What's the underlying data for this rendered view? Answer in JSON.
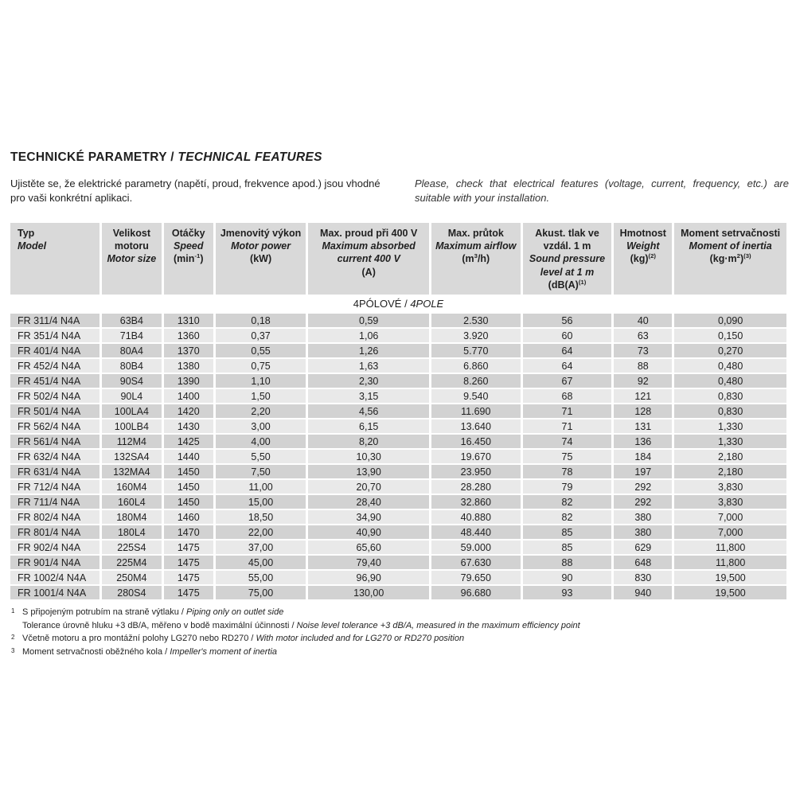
{
  "header": {
    "title_cz": "TECHNICKÉ PARAMETRY / ",
    "title_en": "TECHNICAL FEATURES",
    "intro_cz": "Ujistěte se, že elektrické parametry (napětí, proud, frekvence apod.) jsou vhodné pro vaši konkrétní aplikaci.",
    "intro_en": "Please, check that electrical features (voltage, current, frequency, etc.) are suitable with your installation."
  },
  "table": {
    "section_label": {
      "cz": "4PÓLOVÉ / ",
      "en": "4POLE"
    },
    "columns": [
      {
        "cz": "Typ",
        "en": "Model",
        "unit": []
      },
      {
        "cz": "Velikost motoru",
        "en": "Motor size",
        "unit": []
      },
      {
        "cz": "Otáčky",
        "en": "Speed",
        "unit": [
          [
            "t",
            "(min"
          ],
          [
            "s",
            "-1"
          ],
          [
            "t",
            ")"
          ]
        ]
      },
      {
        "cz": "Jmenovitý výkon",
        "en": "Motor power",
        "unit": [
          [
            "t",
            "(kW)"
          ]
        ]
      },
      {
        "cz": "Max. proud při 400 V",
        "en": "Maximum absorbed current 400 V",
        "unit": [
          [
            "t",
            "(A)"
          ]
        ]
      },
      {
        "cz": "Max. průtok",
        "en": "Maximum airflow",
        "unit": [
          [
            "t",
            "(m"
          ],
          [
            "s",
            "3"
          ],
          [
            "t",
            "/h)"
          ]
        ]
      },
      {
        "cz": "Akust. tlak ve vzdál. 1 m",
        "en": "Sound pressure level at 1 m",
        "unit": [
          [
            "t",
            "(dB(A)"
          ],
          [
            "s",
            "(1)"
          ]
        ]
      },
      {
        "cz": "Hmotnost",
        "en": "Weight",
        "unit": [
          [
            "t",
            "(kg)"
          ],
          [
            "s",
            "(2)"
          ]
        ]
      },
      {
        "cz": "Moment setrvačnosti",
        "en": "Moment of inertia",
        "unit": [
          [
            "t",
            "(kg·m"
          ],
          [
            "s",
            "2"
          ],
          [
            "t",
            ")"
          ],
          [
            "s",
            "(3)"
          ]
        ]
      }
    ],
    "rows": [
      [
        "FR 311/4 N4A",
        "63B4",
        "1310",
        "0,18",
        "0,59",
        "2.530",
        "56",
        "40",
        "0,090"
      ],
      [
        "FR 351/4 N4A",
        "71B4",
        "1360",
        "0,37",
        "1,06",
        "3.920",
        "60",
        "63",
        "0,150"
      ],
      [
        "FR 401/4 N4A",
        "80A4",
        "1370",
        "0,55",
        "1,26",
        "5.770",
        "64",
        "73",
        "0,270"
      ],
      [
        "FR 452/4 N4A",
        "80B4",
        "1380",
        "0,75",
        "1,63",
        "6.860",
        "64",
        "88",
        "0,480"
      ],
      [
        "FR 451/4 N4A",
        "90S4",
        "1390",
        "1,10",
        "2,30",
        "8.260",
        "67",
        "92",
        "0,480"
      ],
      [
        "FR 502/4 N4A",
        "90L4",
        "1400",
        "1,50",
        "3,15",
        "9.540",
        "68",
        "121",
        "0,830"
      ],
      [
        "FR 501/4 N4A",
        "100LA4",
        "1420",
        "2,20",
        "4,56",
        "11.690",
        "71",
        "128",
        "0,830"
      ],
      [
        "FR 562/4 N4A",
        "100LB4",
        "1430",
        "3,00",
        "6,15",
        "13.640",
        "71",
        "131",
        "1,330"
      ],
      [
        "FR 561/4 N4A",
        "112M4",
        "1425",
        "4,00",
        "8,20",
        "16.450",
        "74",
        "136",
        "1,330"
      ],
      [
        "FR 632/4 N4A",
        "132SA4",
        "1440",
        "5,50",
        "10,30",
        "19.670",
        "75",
        "184",
        "2,180"
      ],
      [
        "FR 631/4 N4A",
        "132MA4",
        "1450",
        "7,50",
        "13,90",
        "23.950",
        "78",
        "197",
        "2,180"
      ],
      [
        "FR 712/4 N4A",
        "160M4",
        "1450",
        "11,00",
        "20,70",
        "28.280",
        "79",
        "292",
        "3,830"
      ],
      [
        "FR 711/4 N4A",
        "160L4",
        "1450",
        "15,00",
        "28,40",
        "32.860",
        "82",
        "292",
        "3,830"
      ],
      [
        "FR 802/4 N4A",
        "180M4",
        "1460",
        "18,50",
        "34,90",
        "40.880",
        "82",
        "380",
        "7,000"
      ],
      [
        "FR 801/4 N4A",
        "180L4",
        "1470",
        "22,00",
        "40,90",
        "48.440",
        "85",
        "380",
        "7,000"
      ],
      [
        "FR 902/4 N4A",
        "225S4",
        "1475",
        "37,00",
        "65,60",
        "59.000",
        "85",
        "629",
        "11,800"
      ],
      [
        "FR 901/4 N4A",
        "225M4",
        "1475",
        "45,00",
        "79,40",
        "67.630",
        "88",
        "648",
        "11,800"
      ],
      [
        "FR 1002/4 N4A",
        "250M4",
        "1475",
        "55,00",
        "96,90",
        "79.650",
        "90",
        "830",
        "19,500"
      ],
      [
        "FR 1001/4 N4A",
        "280S4",
        "1475",
        "75,00",
        "130,00",
        "96.680",
        "93",
        "940",
        "19,500"
      ]
    ]
  },
  "footnotes": [
    {
      "marker": "1",
      "lines": [
        {
          "cz": "S připojeným potrubím na straně výtlaku / ",
          "en": "Piping only on outlet side"
        },
        {
          "cz": "Tolerance úrovně hluku +3 dB/A, měřeno v bodě maximální účinnosti / ",
          "en": "Noise level tolerance +3 dB/A, measured in the maximum efficiency point"
        }
      ]
    },
    {
      "marker": "2",
      "lines": [
        {
          "cz": "Včetně motoru a pro montážní polohy LG270 nebo RD270 / ",
          "en": "With motor included and for LG270 or RD270 position"
        }
      ]
    },
    {
      "marker": "3",
      "lines": [
        {
          "cz": "Moment setrvačnosti oběžného kola / ",
          "en": "Impeller's moment of inertia"
        }
      ]
    }
  ],
  "colors": {
    "header_bg": "#d9d9d9",
    "row_dark_bg": "#d2d2d2",
    "row_light_bg": "#e9e9e9",
    "text": "#1f1f1f"
  }
}
